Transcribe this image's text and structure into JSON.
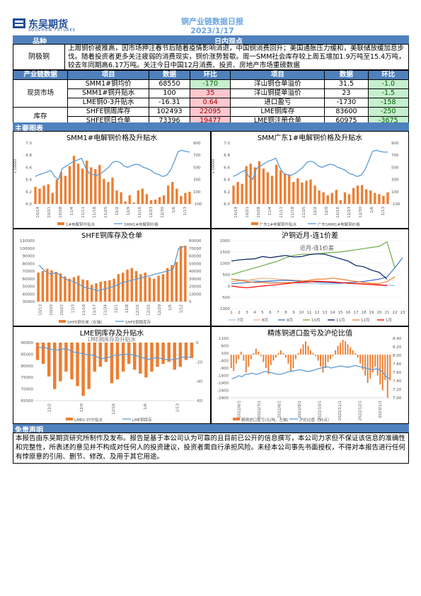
{
  "header": {
    "logo_cn": "东吴期货",
    "logo_en": "SOOCHOW FUTURES",
    "title": "铜产业链数据日报",
    "date": "2023/1/17"
  },
  "view": {
    "col_variety": "品种",
    "col_view": "日内观点",
    "variety": "阴极铜",
    "text": "上周铜价被推高，因市场押注春节后随着疫情影响消退，中国铜消费回升；美国通胀压力缓和，美联储放缓加息步伐。随着投资者更多关注疲弱的消费现实，铜价涨势暂歇。周一SMM社会库存较上周五增加1.9万吨至15.4万吨，较去年同期高6.17万吨。关注今日中国12月消费、投资、房地产市场重磅数据"
  },
  "table": {
    "headers": [
      "产业链数据",
      "项目",
      "数据",
      "环比",
      "项目",
      "数据",
      "环比"
    ],
    "group1": "现货市场",
    "group2": "库存",
    "rows": [
      {
        "l_item": "SMM1#铜均价",
        "l_val": "68550",
        "l_chg": "-170",
        "r_item": "洋山铜仓单溢价",
        "r_val": "31.5",
        "r_chg": "-1.0"
      },
      {
        "l_item": "SMM1#铜升贴水",
        "l_val": "100",
        "l_chg": "35",
        "r_item": "洋山铜提单溢价",
        "r_val": "23",
        "r_chg": "-1.5"
      },
      {
        "l_item": "LME铜0-3升贴水",
        "l_val": "-16.31",
        "l_chg": "0.64",
        "r_item": "进口盈亏",
        "r_val": "-1730",
        "r_chg": "-158"
      },
      {
        "l_item": "SHFE铜周库存",
        "l_val": "102493",
        "l_chg": "22095",
        "r_item": "LME铜库存",
        "r_val": "83600",
        "r_chg": "-250"
      },
      {
        "l_item": "SHFE铜日仓单",
        "l_val": "73396",
        "l_chg": "19477",
        "r_item": "LME铜注册仓单",
        "r_val": "60975",
        "r_chg": "-3675"
      }
    ]
  },
  "charts_band": "主要图表",
  "chart1": {
    "title": "SMM1#电解铜价格及升贴水",
    "y_unit": "x 10000",
    "y_left": [
      "7.0",
      "6.8",
      "6.6",
      "6.4",
      "6.2",
      "6.0"
    ],
    "y_right": [
      "900",
      "700",
      "500",
      "300",
      "100",
      "-100"
    ],
    "x_ticks": [
      "10/14",
      "10/21",
      "10/28",
      "11/4",
      "11/11",
      "11/18",
      "11/25",
      "12/2",
      "12/9",
      "12/16",
      "12/23",
      "12/30",
      "1/6",
      "1/13"
    ],
    "legend": [
      "1#电解铜升贴水",
      "SMM1#电解铜价格"
    ],
    "bars": [
      180,
      150,
      200,
      220,
      80,
      300,
      420,
      360,
      520,
      690,
      560,
      480,
      610,
      500,
      470,
      540,
      310,
      260,
      330,
      120,
      90,
      -60,
      40,
      -80,
      120,
      150,
      60,
      -40,
      -30,
      10,
      40,
      200,
      260,
      150,
      30,
      80,
      100
    ],
    "line": [
      6.45,
      6.48,
      6.5,
      6.52,
      6.55,
      6.45,
      6.4,
      6.58,
      6.62,
      6.66,
      6.7,
      6.72,
      6.75,
      6.6,
      6.5,
      6.48,
      6.47,
      6.5,
      6.55,
      6.6,
      6.68,
      6.7,
      6.68,
      6.62,
      6.6,
      6.63,
      6.65,
      6.64,
      6.6,
      6.58,
      6.55,
      6.5,
      6.48,
      6.45,
      6.47,
      6.55,
      6.7,
      6.86,
      6.88,
      6.86,
      6.85
    ]
  },
  "chart2": {
    "title": "SMM广东1#电解铜价格及升贴水",
    "y_unit": "x 10000",
    "y_left": [
      "7.0",
      "6.8",
      "6.6",
      "6.4",
      "6.2",
      "6.0"
    ],
    "y_right": [
      "900",
      "700",
      "500",
      "300",
      "100",
      "-100"
    ],
    "x_ticks": [
      "10/14",
      "10/21",
      "10/28",
      "11/4",
      "11/11",
      "11/18",
      "11/25",
      "12/2",
      "12/9",
      "12/16",
      "12/23",
      "12/30",
      "1/6",
      "1/13"
    ],
    "legend": [
      "广东1#电解铜升贴水",
      "广东SMM1#电解铜价格"
    ],
    "bars": [
      200,
      260,
      230,
      520,
      560,
      500,
      600,
      480,
      420,
      360,
      540,
      450,
      400,
      380,
      260,
      320,
      250,
      280,
      300,
      200,
      120,
      90,
      40,
      80,
      130,
      -40,
      90,
      60,
      160,
      200,
      210,
      140,
      120,
      80,
      60,
      30,
      90
    ],
    "line": [
      6.45,
      6.48,
      6.52,
      6.55,
      6.45,
      6.4,
      6.58,
      6.62,
      6.66,
      6.7,
      6.72,
      6.75,
      6.6,
      6.5,
      6.48,
      6.47,
      6.5,
      6.55,
      6.6,
      6.68,
      6.7,
      6.68,
      6.62,
      6.6,
      6.63,
      6.65,
      6.64,
      6.6,
      6.58,
      6.55,
      6.5,
      6.48,
      6.45,
      6.47,
      6.55,
      6.7,
      6.86,
      6.88,
      6.86,
      6.85,
      6.85
    ]
  },
  "chart3": {
    "title": "SHFE铜库存及仓单",
    "y_left": [
      "110000",
      "100000",
      "90000",
      "80000",
      "70000",
      "60000",
      "50000",
      "40000",
      "30000"
    ],
    "y_right": [
      "80000",
      "70000",
      "60000",
      "50000",
      "40000",
      "30000",
      "20000",
      "10000",
      "0"
    ],
    "x_ticks": [
      "10/13",
      "10/20",
      "10/27",
      "11/3",
      "11/10",
      "11/17",
      "11/24",
      "12/1",
      "12/8",
      "12/15",
      "12/22",
      "12/29",
      "1/5",
      "1/12"
    ],
    "legend": [
      "SHFE铜仓单（右轴）",
      "SHFE铜周库存"
    ],
    "bars": [
      38000,
      40000,
      43000,
      41000,
      39000,
      37000,
      33000,
      30000,
      32000,
      34000,
      29000,
      28000,
      22000,
      24000,
      26000,
      27000,
      28000,
      30000,
      36000,
      38000,
      42000,
      44000,
      40000,
      36000,
      38000,
      32000,
      30000,
      34000,
      36000,
      44000,
      48000,
      52000,
      73000,
      73396
    ],
    "line": [
      78000,
      70000,
      66000,
      68000,
      62000,
      58000,
      56000,
      52000,
      48000,
      47000,
      44000,
      46000,
      48000,
      50000,
      54000,
      56000,
      58000,
      60000,
      62000,
      64000,
      66000,
      68000,
      70000,
      72000,
      100000,
      102493
    ]
  },
  "chart4": {
    "title": "沪铜近月-连1价差",
    "subtitle": "近月-连1价差",
    "y_left": [
      "2000",
      "1500",
      "1000",
      "500",
      "0",
      "-500",
      "-1000"
    ],
    "x_ticks": [
      "1",
      "2",
      "3",
      "4",
      "5",
      "6",
      "7",
      "8",
      "9",
      "10",
      "11",
      "12",
      "13",
      "14",
      "15",
      "16",
      "17",
      "18",
      "19",
      "20",
      "21",
      "22",
      "23"
    ],
    "legend": [
      "7月",
      "8月",
      "9月",
      "10月",
      "11月",
      "12月",
      "1月"
    ],
    "colors": [
      "#9dc3e6",
      "#f4b183",
      "#4472c4",
      "#70ad47",
      "#002060",
      "#ed7d31",
      "#ff0000"
    ],
    "series": [
      [
        300,
        280,
        260,
        240,
        200,
        180,
        160,
        150,
        140,
        120,
        110,
        100,
        90,
        80,
        100,
        150,
        120,
        100,
        80,
        60,
        40,
        20
      ],
      [
        200,
        220,
        250,
        300,
        350,
        330,
        300,
        280,
        260,
        240,
        230,
        220,
        200,
        180,
        150,
        120,
        110,
        100,
        90,
        80
      ],
      [
        100,
        120,
        150,
        180,
        200,
        220,
        240,
        250,
        230,
        210,
        190,
        170,
        150,
        140,
        130,
        150,
        170,
        200,
        250,
        300,
        400,
        800,
        1250
      ],
      [
        500,
        600,
        700,
        800,
        900,
        1000,
        1100,
        1250,
        1350,
        1400,
        1400,
        1420,
        1450,
        1480,
        1500,
        1550,
        1600,
        1650,
        1700,
        1750,
        1950,
        800
      ],
      [
        1100,
        1150,
        1180,
        1200,
        1300,
        1250,
        1300,
        1350,
        1280,
        1300,
        1380,
        1420,
        1400,
        1300,
        1200,
        1100,
        900,
        850,
        700,
        600,
        300
      ],
      [
        300,
        250,
        200,
        150,
        160,
        120,
        130,
        140,
        150,
        200,
        250,
        300,
        300,
        350,
        300,
        250,
        200,
        150,
        120,
        100,
        200,
        400
      ],
      [
        0,
        -50,
        -80,
        -40,
        0,
        30,
        60,
        100,
        140,
        160,
        180,
        200,
        200,
        180,
        150,
        120,
        100,
        80,
        60,
        40,
        20
      ]
    ]
  },
  "chart5": {
    "title": "LME铜库存及升贴水",
    "subtitle": "LME铜库存及升贴水",
    "y_left": [
      "90000",
      "85000",
      "80000",
      "75000",
      "70000",
      "65000"
    ],
    "y_right": [
      "0",
      "-20",
      "-40",
      "-60"
    ],
    "x_ticks": [
      "12/2",
      "12/9",
      "12/16",
      "1/6",
      "1/13"
    ],
    "legend": [
      "LME0-3T升贴水",
      "LME铜库存"
    ],
    "bars": [
      -18,
      -22,
      -35,
      -48,
      -40,
      -30,
      -38,
      -45,
      -55,
      -48,
      -30,
      -25,
      -20,
      -42,
      -38,
      -30,
      -22,
      -28,
      -32,
      -36,
      -30,
      -25,
      -22,
      -20,
      -28,
      -25,
      -18,
      -16
    ],
    "line": [
      88000,
      87800,
      87000,
      86800,
      87500,
      86000,
      85500,
      84800,
      84600,
      83000,
      83500,
      84500,
      84800,
      85000,
      84500,
      83500,
      82800,
      83500,
      83000,
      82500,
      83000,
      83800,
      83600
    ]
  },
  "chart6": {
    "title": "精炼铜进口盈亏及沪伦比值",
    "y_left": [
      "1100",
      "600",
      "100",
      "-400",
      "-900",
      "-1400",
      "-1900",
      "-2400",
      "-2900"
    ],
    "y_right": [
      "8.40",
      "8.20",
      "8.00",
      "7.80",
      "7.60",
      "7.40",
      "7.20",
      "7.00"
    ],
    "x_ticks": [
      "2022/6/1",
      "2022/7/1",
      "2022/8/1",
      "2022/9/1",
      "2022/10/1",
      "2022/11/1",
      "2022/12/1",
      "2023/1/1"
    ],
    "legend": [
      "精铜进口盈亏(元/吨，左轴)",
      "沪伦比值（15点）"
    ],
    "bars": [
      -900,
      -1100,
      -600,
      -300,
      200,
      -400,
      -1200,
      -800,
      -300,
      100,
      400,
      200,
      -100,
      -500,
      -900,
      -1300,
      -700,
      -400,
      -200,
      100,
      300,
      100,
      -200,
      -600,
      -1100,
      -900,
      -300,
      100,
      400,
      700,
      900,
      600,
      300,
      100,
      -100,
      -400,
      -800,
      -1200,
      -900,
      -500,
      -300,
      -100,
      300,
      600,
      800,
      1000,
      900,
      700,
      500,
      300,
      100,
      -200,
      -600,
      -1000,
      -1400,
      -1900,
      -1600,
      -1200,
      -800,
      -1400,
      -2000,
      -2400,
      -1700,
      -2900,
      -1730
    ],
    "line": [
      7.45,
      7.47,
      7.52,
      7.5,
      7.55,
      7.56,
      7.58,
      7.55,
      7.57,
      7.6,
      7.62,
      7.6,
      7.58,
      7.56,
      7.55,
      7.57,
      7.6,
      7.62,
      7.63,
      7.65,
      7.66,
      7.64,
      7.62,
      7.63,
      7.65,
      7.68,
      7.7,
      7.72,
      7.73,
      7.7,
      7.72,
      7.74,
      7.75,
      7.73,
      7.72,
      7.74,
      7.76,
      7.74,
      7.72,
      7.7,
      7.68,
      7.66,
      7.68,
      7.67,
      7.6,
      7.5,
      7.45
    ]
  },
  "disclaimer": {
    "title": "免责声明",
    "text": "本报告由东吴期货研究所制作及发布。报告是基于本公司认为可靠的且目前已公开的信息撰写，本公司力求但不保证该信息的准确性和完整性，所表述的意见并不构成对任何人的投资建议，投资者需自行承担风险。未经本公司事先书面授权，不得对本报告进行任何有悖原意的引用、删节、修改、及用于其它用途。"
  }
}
